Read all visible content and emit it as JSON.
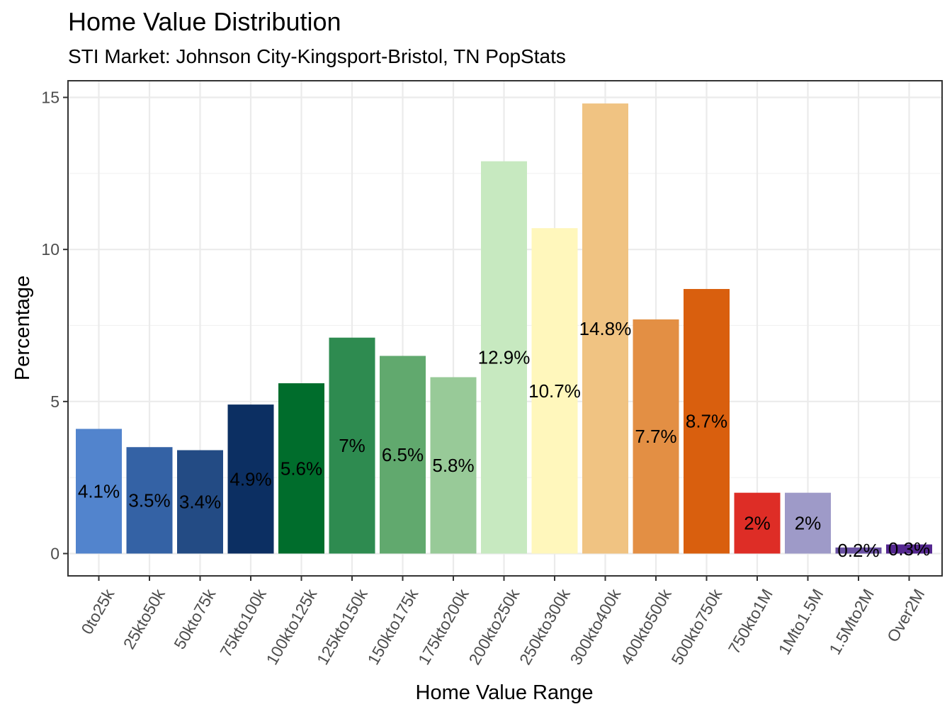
{
  "chart_data": {
    "type": "bar",
    "title": "Home Value Distribution",
    "subtitle": "STI Market: Johnson City-Kingsport-Bristol, TN PopStats",
    "xlabel": "Home Value Range",
    "ylabel": "Percentage",
    "ylim": [
      0,
      15
    ],
    "yticks": [
      0,
      5,
      10,
      15
    ],
    "grid": true,
    "legend": "none",
    "categories": [
      "0to25k",
      "25kto50k",
      "50kto75k",
      "75kto100k",
      "100kto125k",
      "125kto150k",
      "150kto175k",
      "175kto200k",
      "200kto250k",
      "250kto300k",
      "300kto400k",
      "400kto500k",
      "500kto750k",
      "750kto1M",
      "1Mto1.5M",
      "1.5Mto2M",
      "Over2M"
    ],
    "values": [
      4.1,
      3.5,
      3.4,
      4.9,
      5.6,
      7.1,
      6.5,
      5.8,
      12.9,
      10.7,
      14.8,
      7.7,
      8.7,
      2.0,
      2.0,
      0.2,
      0.3
    ],
    "labels": [
      "4.1%",
      "3.5%",
      "3.4%",
      "4.9%",
      "5.6%",
      "7%",
      "6.5%",
      "5.8%",
      "12.9%",
      "10.7%",
      "14.8%",
      "7.7%",
      "8.7%",
      "2%",
      "2%",
      "0.2%",
      "0.3%"
    ],
    "colors": [
      "#5284cd",
      "#3462a5",
      "#234b84",
      "#0c2f62",
      "#006d2c",
      "#2e8b50",
      "#61a96e",
      "#98ca98",
      "#c7e9c0",
      "#fff7bc",
      "#f0c382",
      "#e38f44",
      "#d95f0e",
      "#de2d26",
      "#9e9ac8",
      "#6a51a3",
      "#54278f"
    ]
  }
}
